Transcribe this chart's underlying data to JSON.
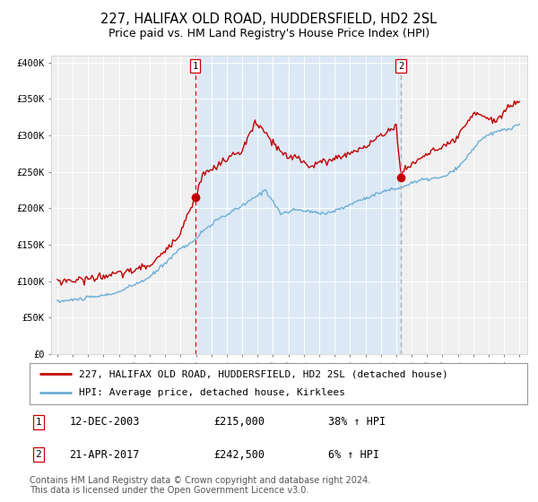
{
  "title": "227, HALIFAX OLD ROAD, HUDDERSFIELD, HD2 2SL",
  "subtitle": "Price paid vs. HM Land Registry's House Price Index (HPI)",
  "yticks": [
    0,
    50000,
    100000,
    150000,
    200000,
    250000,
    300000,
    350000,
    400000
  ],
  "ytick_labels": [
    "£0",
    "£50K",
    "£100K",
    "£150K",
    "£200K",
    "£250K",
    "£300K",
    "£350K",
    "£400K"
  ],
  "sale1_date_label": "12-DEC-2003",
  "sale1_price": 215000,
  "sale1_price_label": "£215,000",
  "sale1_hpi_label": "38% ↑ HPI",
  "sale1_x": 2003.95,
  "sale2_date_label": "21-APR-2017",
  "sale2_price": 242500,
  "sale2_price_label": "£242,500",
  "sale2_hpi_label": "6% ↑ HPI",
  "sale2_x": 2017.3,
  "hpi_line_color": "#6baed6",
  "price_line_color": "#c00000",
  "shade_color": "#dce9f5",
  "vline1_color": "#cc0000",
  "vline2_color": "#aaaaaa",
  "dot_color": "#c00000",
  "legend_label1": "227, HALIFAX OLD ROAD, HUDDERSFIELD, HD2 2SL (detached house)",
  "legend_label2": "HPI: Average price, detached house, Kirklees",
  "footnote": "Contains HM Land Registry data © Crown copyright and database right 2024.\nThis data is licensed under the Open Government Licence v3.0.",
  "background_color": "#ffffff",
  "plot_bg_color": "#f0f0f0",
  "title_fontsize": 10.5,
  "subtitle_fontsize": 9,
  "tick_fontsize": 7.5,
  "legend_fontsize": 8,
  "footnote_fontsize": 7
}
